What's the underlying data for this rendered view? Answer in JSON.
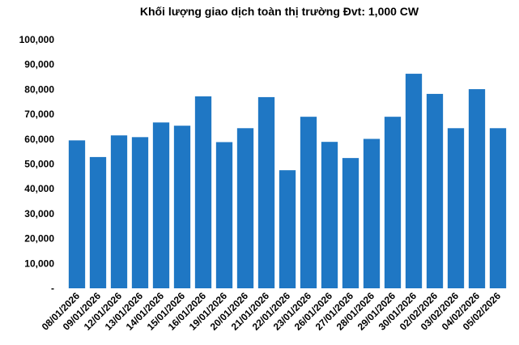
{
  "chart_data": {
    "type": "bar",
    "title": "Khối lượng giao dịch toàn thị trường Đvt: 1,000 CW",
    "xlabel": "",
    "ylabel": "",
    "ylim": [
      0,
      100000
    ],
    "yticks": [
      "-",
      "10,000",
      "20,000",
      "30,000",
      "40,000",
      "50,000",
      "60,000",
      "70,000",
      "80,000",
      "90,000",
      "100,000"
    ],
    "categories": [
      "08/01/2026",
      "09/01/2026",
      "12/01/2026",
      "13/01/2026",
      "14/01/2026",
      "15/01/2026",
      "16/01/2026",
      "19/01/2026",
      "20/01/2026",
      "21/01/2026",
      "22/01/2026",
      "23/01/2026",
      "26/01/2026",
      "27/01/2026",
      "28/01/2026",
      "29/01/2026",
      "30/01/2026",
      "02/02/2026",
      "03/02/2026",
      "04/02/2026",
      "05/02/2026"
    ],
    "values": [
      59500,
      52800,
      61500,
      60800,
      66700,
      65400,
      77200,
      58800,
      64400,
      76900,
      47500,
      69000,
      58900,
      52400,
      60100,
      69000,
      86300,
      78200,
      64400,
      80100,
      64400
    ],
    "bar_color": "#1F77C4",
    "grid": false,
    "legend": "none"
  }
}
